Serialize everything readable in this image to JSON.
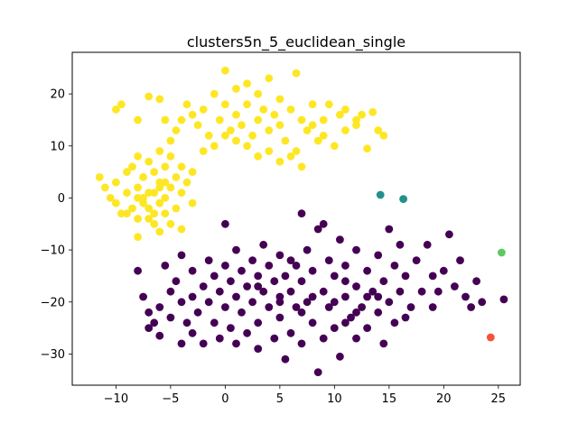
{
  "chart_data": {
    "type": "scatter",
    "title": "clusters5n_5_euclidean_single",
    "xlabel": "",
    "ylabel": "",
    "xlim": [
      -14,
      27
    ],
    "ylim": [
      -36,
      28
    ],
    "x_ticks": [
      -10,
      -5,
      0,
      5,
      10,
      15,
      20,
      25
    ],
    "y_ticks": [
      -30,
      -20,
      -10,
      0,
      10,
      20
    ],
    "x_tick_labels": [
      "−10",
      "−5",
      "0",
      "5",
      "10",
      "15",
      "20",
      "25"
    ],
    "y_tick_labels": [
      "−30",
      "−20",
      "−10",
      "0",
      "10",
      "20"
    ],
    "grid": false,
    "legend": "none",
    "colormap": "viridis",
    "clusters": [
      {
        "color": "#fde725",
        "description": "elongated diagonal band",
        "points": [
          [
            -10,
            17
          ],
          [
            -9.5,
            18
          ],
          [
            -8,
            15
          ],
          [
            -7,
            19.5
          ],
          [
            -6,
            19
          ],
          [
            -5.5,
            15
          ],
          [
            -5,
            11
          ],
          [
            -4.5,
            13
          ],
          [
            -4,
            15
          ],
          [
            -3.5,
            18
          ],
          [
            -3,
            16
          ],
          [
            -2.5,
            14
          ],
          [
            -2,
            17
          ],
          [
            -1.5,
            12
          ],
          [
            -1,
            20
          ],
          [
            -0.5,
            15
          ],
          [
            0,
            24.5
          ],
          [
            0,
            18
          ],
          [
            0.5,
            13
          ],
          [
            1,
            21
          ],
          [
            1,
            16
          ],
          [
            1.5,
            14
          ],
          [
            2,
            22
          ],
          [
            2,
            18
          ],
          [
            2.5,
            12
          ],
          [
            3,
            15
          ],
          [
            3,
            20
          ],
          [
            3.5,
            17
          ],
          [
            4,
            23
          ],
          [
            4,
            13
          ],
          [
            4.5,
            16
          ],
          [
            5,
            19
          ],
          [
            5,
            14
          ],
          [
            5.5,
            11
          ],
          [
            6,
            17
          ],
          [
            6.5,
            24
          ],
          [
            6.5,
            9
          ],
          [
            7,
            15
          ],
          [
            7.5,
            13
          ],
          [
            8,
            18
          ],
          [
            8.5,
            11
          ],
          [
            9,
            15
          ],
          [
            9.5,
            18
          ],
          [
            10,
            10
          ],
          [
            10.5,
            16
          ],
          [
            11,
            13
          ],
          [
            12,
            15
          ],
          [
            12.5,
            16
          ],
          [
            13.5,
            16.5
          ],
          [
            14,
            13
          ],
          [
            14.5,
            12
          ],
          [
            2,
            10
          ],
          [
            3,
            8
          ],
          [
            4,
            9
          ],
          [
            5,
            7
          ],
          [
            6,
            8
          ],
          [
            7,
            6
          ],
          [
            1,
            11
          ],
          [
            -2,
            9
          ],
          [
            -1,
            10
          ],
          [
            0,
            12
          ],
          [
            8,
            14
          ],
          [
            9,
            12
          ],
          [
            11,
            17
          ],
          [
            12,
            14
          ],
          [
            13,
            9.5
          ]
        ]
      },
      {
        "color": "#fde725",
        "description": "dense blob",
        "points": [
          [
            -11.5,
            4
          ],
          [
            -11,
            2
          ],
          [
            -10.5,
            0
          ],
          [
            -10,
            3
          ],
          [
            -10,
            -1
          ],
          [
            -9.5,
            -3
          ],
          [
            -9,
            5
          ],
          [
            -9,
            1
          ],
          [
            -8.5,
            -2
          ],
          [
            -8.5,
            6
          ],
          [
            -8,
            2
          ],
          [
            -8,
            -4
          ],
          [
            -8,
            -7.5
          ],
          [
            -7.5,
            4
          ],
          [
            -7.5,
            0
          ],
          [
            -7,
            7
          ],
          [
            -7,
            -2
          ],
          [
            -6.5,
            5
          ],
          [
            -6.5,
            1
          ],
          [
            -6.5,
            -5
          ],
          [
            -6,
            3
          ],
          [
            -6,
            -1
          ],
          [
            -6,
            -6.5
          ],
          [
            -5.5,
            6
          ],
          [
            -5.5,
            0
          ],
          [
            -5.5,
            -3
          ],
          [
            -5,
            2
          ],
          [
            -5,
            -5
          ],
          [
            -4.5,
            4
          ],
          [
            -4.5,
            -2
          ],
          [
            -4,
            1
          ],
          [
            -4,
            6
          ],
          [
            -4,
            -6
          ],
          [
            -3.5,
            3
          ],
          [
            -3,
            -1
          ],
          [
            -3,
            5
          ],
          [
            -7,
            -4
          ],
          [
            -9,
            -3
          ],
          [
            -8,
            8
          ],
          [
            -6,
            9
          ],
          [
            -5,
            8
          ],
          [
            -7.5,
            -1
          ],
          [
            -6,
            2
          ],
          [
            -7,
            1
          ],
          [
            -8,
            0
          ],
          [
            -6.5,
            -3
          ],
          [
            -5.5,
            3
          ]
        ]
      },
      {
        "color": "#440154",
        "description": "large lower cluster",
        "points": [
          [
            -8,
            -14
          ],
          [
            -7.5,
            -19
          ],
          [
            -7,
            -22
          ],
          [
            -7,
            -25
          ],
          [
            -6.5,
            -24
          ],
          [
            -6,
            -26.5
          ],
          [
            -6,
            -21
          ],
          [
            -5.5,
            -13
          ],
          [
            -5,
            -18
          ],
          [
            -5,
            -23
          ],
          [
            -4.5,
            -16
          ],
          [
            -4,
            -20
          ],
          [
            -4,
            -28
          ],
          [
            -3.5,
            -24
          ],
          [
            -3,
            -14
          ],
          [
            -3,
            -19
          ],
          [
            -3,
            -26
          ],
          [
            -2.5,
            -22
          ],
          [
            -2,
            -17
          ],
          [
            -2,
            -28
          ],
          [
            -1.5,
            -12
          ],
          [
            -1.5,
            -20
          ],
          [
            -1,
            -15
          ],
          [
            -1,
            -24
          ],
          [
            -0.5,
            -18
          ],
          [
            -0.5,
            -27
          ],
          [
            0,
            -13
          ],
          [
            0,
            -21
          ],
          [
            0.5,
            -16
          ],
          [
            0.5,
            -25
          ],
          [
            1,
            -10
          ],
          [
            1,
            -19
          ],
          [
            1,
            -28
          ],
          [
            1.5,
            -14
          ],
          [
            1.5,
            -22
          ],
          [
            2,
            -17
          ],
          [
            2,
            -26
          ],
          [
            2.5,
            -12
          ],
          [
            2.5,
            -20
          ],
          [
            3,
            -15
          ],
          [
            3,
            -24
          ],
          [
            3,
            -29
          ],
          [
            3.5,
            -18
          ],
          [
            3.5,
            -9
          ],
          [
            4,
            -21
          ],
          [
            4,
            -13
          ],
          [
            4.5,
            -16
          ],
          [
            4.5,
            -27
          ],
          [
            5,
            -19
          ],
          [
            5,
            -11
          ],
          [
            5,
            -23
          ],
          [
            5.5,
            -15
          ],
          [
            5.5,
            -31
          ],
          [
            6,
            -18
          ],
          [
            6,
            -26
          ],
          [
            6.5,
            -13
          ],
          [
            6.5,
            -21
          ],
          [
            7,
            -3
          ],
          [
            7,
            -16
          ],
          [
            7,
            -28
          ],
          [
            7.5,
            -10
          ],
          [
            7.5,
            -20
          ],
          [
            8,
            -14
          ],
          [
            8,
            -24
          ],
          [
            8.5,
            -6
          ],
          [
            8.5,
            -33.5
          ],
          [
            9,
            -18
          ],
          [
            9,
            -27
          ],
          [
            9.5,
            -12
          ],
          [
            9.5,
            -21
          ],
          [
            10,
            -15
          ],
          [
            10,
            -25
          ],
          [
            10.5,
            -8
          ],
          [
            10.5,
            -30.5
          ],
          [
            11,
            -19
          ],
          [
            11,
            -13
          ],
          [
            11.5,
            -23
          ],
          [
            12,
            -10
          ],
          [
            12,
            -17
          ],
          [
            12,
            -27
          ],
          [
            12.5,
            -21
          ],
          [
            13,
            -14
          ],
          [
            13,
            -25
          ],
          [
            13.5,
            -18
          ],
          [
            14,
            -11
          ],
          [
            14,
            -22
          ],
          [
            14.5,
            -16
          ],
          [
            14.5,
            -28
          ],
          [
            15,
            -6
          ],
          [
            15,
            -20
          ],
          [
            15.5,
            -13
          ],
          [
            15.5,
            -24
          ],
          [
            16,
            -9
          ],
          [
            16,
            -18
          ],
          [
            16.5,
            -15
          ],
          [
            16.5,
            -23
          ],
          [
            17,
            -21
          ],
          [
            17.5,
            -12
          ],
          [
            18,
            -18
          ],
          [
            18.5,
            -9
          ],
          [
            19,
            -15
          ],
          [
            19,
            -21
          ],
          [
            19.5,
            -18
          ],
          [
            20,
            -14
          ],
          [
            20.5,
            -7
          ],
          [
            21,
            -17
          ],
          [
            21.5,
            -12
          ],
          [
            22,
            -19
          ],
          [
            22.5,
            -21
          ],
          [
            23,
            -16
          ],
          [
            23.5,
            -20
          ],
          [
            25.5,
            -19.5
          ],
          [
            -4,
            -11
          ],
          [
            0,
            -5
          ],
          [
            9,
            -5
          ],
          [
            6,
            -12
          ],
          [
            3,
            -17
          ],
          [
            8,
            -19
          ],
          [
            11,
            -16
          ],
          [
            13,
            -19
          ],
          [
            10,
            -20
          ],
          [
            7,
            -22
          ],
          [
            5,
            -20
          ],
          [
            12,
            -22
          ],
          [
            14,
            -19
          ],
          [
            11,
            -24
          ]
        ]
      },
      {
        "color": "#21918c",
        "description": "two-point cluster",
        "points": [
          [
            14.2,
            0.6
          ],
          [
            16.3,
            -0.2
          ]
        ]
      },
      {
        "color": "#5ec962",
        "description": "single point",
        "points": [
          [
            25.3,
            -10.5
          ]
        ]
      },
      {
        "color": "#f8513a",
        "description": "single point",
        "points": [
          [
            24.3,
            -26.8
          ]
        ]
      }
    ]
  }
}
